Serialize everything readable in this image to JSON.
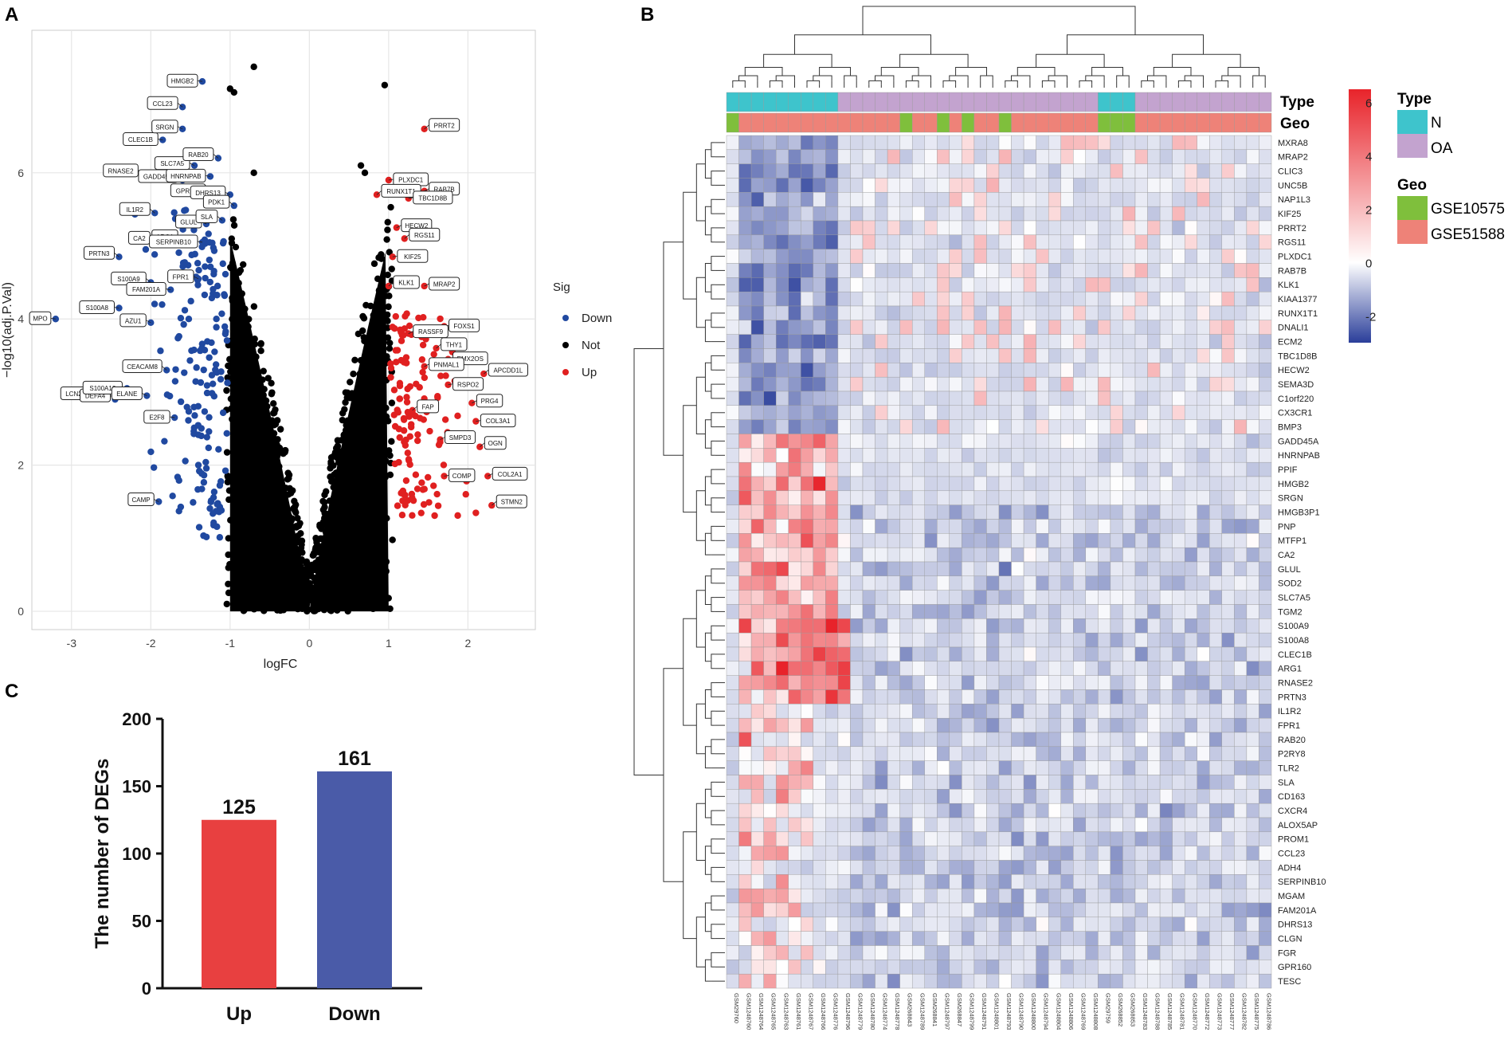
{
  "panels": {
    "a": "A",
    "b": "B",
    "c": "C"
  },
  "chart_data": [
    {
      "type": "scatter",
      "title": "",
      "xlabel": "logFC",
      "ylabel": "−log10(adj.P.Val)",
      "xlim": [
        -3.5,
        2.85
      ],
      "ylim": [
        -0.25,
        7.95
      ],
      "xticks": [
        -3,
        -2,
        -1,
        0,
        1,
        2
      ],
      "yticks": [
        0,
        2,
        4,
        6
      ],
      "grid": true,
      "legend": {
        "title": "Sig",
        "position": "right",
        "entries": [
          {
            "name": "Down",
            "color": "#2049a0"
          },
          {
            "name": "Not",
            "color": "#000000"
          },
          {
            "name": "Up",
            "color": "#e02020"
          }
        ]
      },
      "series_counts": {
        "Up": 125,
        "Down": 161
      },
      "labeled_genes": [
        {
          "label": "MPO",
          "x": -3.2,
          "y": 4.0,
          "sig": "Down"
        },
        {
          "label": "LCN2",
          "x": -2.75,
          "y": 2.95,
          "sig": "Down"
        },
        {
          "label": "DEFA4",
          "x": -2.45,
          "y": 2.9,
          "sig": "Down"
        },
        {
          "label": "S100A12",
          "x": -2.3,
          "y": 3.05,
          "sig": "Down"
        },
        {
          "label": "ELANE",
          "x": -2.05,
          "y": 2.95,
          "sig": "Down"
        },
        {
          "label": "CEACAM8",
          "x": -1.8,
          "y": 3.3,
          "sig": "Down"
        },
        {
          "label": "S100A8",
          "x": -2.4,
          "y": 4.15,
          "sig": "Down"
        },
        {
          "label": "AZU1",
          "x": -2.0,
          "y": 3.95,
          "sig": "Down"
        },
        {
          "label": "S100A9",
          "x": -2.0,
          "y": 4.5,
          "sig": "Down"
        },
        {
          "label": "FAM201A",
          "x": -1.75,
          "y": 4.4,
          "sig": "Down"
        },
        {
          "label": "FPR1",
          "x": -1.4,
          "y": 4.55,
          "sig": "Down"
        },
        {
          "label": "PRTN3",
          "x": -2.4,
          "y": 4.85,
          "sig": "Down"
        },
        {
          "label": "CA2",
          "x": -1.95,
          "y": 5.1,
          "sig": "Down"
        },
        {
          "label": "ARG1",
          "x": -1.6,
          "y": 5.1,
          "sig": "Down"
        },
        {
          "label": "IL1R2",
          "x": -1.95,
          "y": 5.45,
          "sig": "Down"
        },
        {
          "label": "SERPINB10",
          "x": -1.35,
          "y": 5.05,
          "sig": "Down"
        },
        {
          "label": "GLUL",
          "x": -1.3,
          "y": 5.3,
          "sig": "Down"
        },
        {
          "label": "SLA",
          "x": -1.1,
          "y": 5.35,
          "sig": "Down"
        },
        {
          "label": "GPR160",
          "x": -1.25,
          "y": 5.75,
          "sig": "Down"
        },
        {
          "label": "RNASE2",
          "x": -2.1,
          "y": 6.0,
          "sig": "Down"
        },
        {
          "label": "GADD45A",
          "x": -1.6,
          "y": 5.9,
          "sig": "Down"
        },
        {
          "label": "HNRNPAB",
          "x": -1.25,
          "y": 5.95,
          "sig": "Down"
        },
        {
          "label": "SLC7A5",
          "x": -1.45,
          "y": 6.1,
          "sig": "Down"
        },
        {
          "label": "RAB20",
          "x": -1.15,
          "y": 6.2,
          "sig": "Down"
        },
        {
          "label": "CLEC1B",
          "x": -1.85,
          "y": 6.45,
          "sig": "Down"
        },
        {
          "label": "SRGN",
          "x": -1.6,
          "y": 6.6,
          "sig": "Down"
        },
        {
          "label": "CCL23",
          "x": -1.6,
          "y": 6.9,
          "sig": "Down"
        },
        {
          "label": "HMGB2",
          "x": -1.35,
          "y": 7.25,
          "sig": "Down"
        },
        {
          "label": "DHRS13",
          "x": -1.0,
          "y": 5.7,
          "sig": "Down"
        },
        {
          "label": "PDK1",
          "x": -0.95,
          "y": 5.55,
          "sig": "Down"
        },
        {
          "label": "E2F8",
          "x": -1.7,
          "y": 2.65,
          "sig": "Down"
        },
        {
          "label": "CAMP",
          "x": -1.9,
          "y": 1.5,
          "sig": "Down"
        },
        {
          "label": "PRRT2",
          "x": 1.45,
          "y": 6.6,
          "sig": "Up"
        },
        {
          "label": "PLXDC1",
          "x": 1.0,
          "y": 5.9,
          "sig": "Up"
        },
        {
          "label": "RAB7B",
          "x": 1.45,
          "y": 5.75,
          "sig": "Up"
        },
        {
          "label": "RUNX1T1",
          "x": 0.85,
          "y": 5.7,
          "sig": "Up"
        },
        {
          "label": "TBC1D8B",
          "x": 1.25,
          "y": 5.65,
          "sig": "Up"
        },
        {
          "label": "HECW2",
          "x": 1.1,
          "y": 5.25,
          "sig": "Up"
        },
        {
          "label": "RGS11",
          "x": 1.2,
          "y": 5.1,
          "sig": "Up"
        },
        {
          "label": "KIF25",
          "x": 1.05,
          "y": 4.85,
          "sig": "Up"
        },
        {
          "label": "MRAP2",
          "x": 1.45,
          "y": 4.45,
          "sig": "Up"
        },
        {
          "label": "KLK1",
          "x": 1.0,
          "y": 4.45,
          "sig": "Up"
        },
        {
          "label": "FOXS1",
          "x": 1.7,
          "y": 3.9,
          "sig": "Up"
        },
        {
          "label": "RASSF9",
          "x": 1.25,
          "y": 3.8,
          "sig": "Up"
        },
        {
          "label": "THY1",
          "x": 1.6,
          "y": 3.6,
          "sig": "Up"
        },
        {
          "label": "EMX2OS",
          "x": 1.75,
          "y": 3.45,
          "sig": "Up"
        },
        {
          "label": "PNMAL1",
          "x": 1.45,
          "y": 3.35,
          "sig": "Up"
        },
        {
          "label": "APCDD1L",
          "x": 2.2,
          "y": 3.25,
          "sig": "Up"
        },
        {
          "label": "RSPO2",
          "x": 1.75,
          "y": 3.1,
          "sig": "Up"
        },
        {
          "label": "PRG4",
          "x": 2.05,
          "y": 2.85,
          "sig": "Up"
        },
        {
          "label": "FAP",
          "x": 1.3,
          "y": 2.75,
          "sig": "Up"
        },
        {
          "label": "COL3A1",
          "x": 2.1,
          "y": 2.6,
          "sig": "Up"
        },
        {
          "label": "SMPD3",
          "x": 1.65,
          "y": 2.35,
          "sig": "Up"
        },
        {
          "label": "OGN",
          "x": 2.15,
          "y": 2.25,
          "sig": "Up"
        },
        {
          "label": "COMP",
          "x": 1.7,
          "y": 1.85,
          "sig": "Up"
        },
        {
          "label": "COL2A1",
          "x": 2.25,
          "y": 1.85,
          "sig": "Up"
        },
        {
          "label": "STMN2",
          "x": 2.3,
          "y": 1.45,
          "sig": "Up"
        }
      ]
    },
    {
      "type": "heatmap",
      "title": "",
      "colorbar": {
        "min": -3,
        "max": 6.5,
        "ticks": [
          -2,
          0,
          2,
          4,
          6
        ],
        "colors": [
          "#2a3e9a",
          "#ffffff",
          "#e8232a"
        ]
      },
      "annotation_tracks": [
        "Type",
        "Geo"
      ],
      "legend": [
        {
          "title": "Type",
          "entries": [
            {
              "name": "N",
              "color": "#3ec4cc"
            },
            {
              "name": "OA",
              "color": "#c3a3cf"
            }
          ]
        },
        {
          "title": "Geo",
          "entries": [
            {
              "name": "GSE10575",
              "color": "#7fbf3c"
            },
            {
              "name": "GSE51588",
              "color": "#ee8278"
            }
          ]
        }
      ],
      "rows": [
        "MXRA8",
        "MRAP2",
        "CLIC3",
        "UNC5B",
        "NAP1L3",
        "KIF25",
        "PRRT2",
        "RGS11",
        "PLXDC1",
        "RAB7B",
        "KLK1",
        "KIAA1377",
        "RUNX1T1",
        "DNALI1",
        "ECM2",
        "TBC1D8B",
        "HECW2",
        "SEMA3D",
        "C1orf220",
        "CX3CR1",
        "BMP3",
        "GADD45A",
        "HNRNPAB",
        "PPIF",
        "HMGB2",
        "SRGN",
        "HMGB3P1",
        "PNP",
        "MTFP1",
        "CA2",
        "GLUL",
        "SOD2",
        "SLC7A5",
        "TGM2",
        "S100A9",
        "S100A8",
        "CLEC1B",
        "ARG1",
        "RNASE2",
        "PRTN3",
        "IL1R2",
        "FPR1",
        "RAB20",
        "P2RY8",
        "TLR2",
        "SLA",
        "CD163",
        "CXCR4",
        "ALOX5AP",
        "PROM1",
        "CCL23",
        "ADH4",
        "SERPINB10",
        "MGAM",
        "FAM201A",
        "DHRS13",
        "CLGN",
        "FGR",
        "GPR160",
        "TESC"
      ],
      "columns": [
        "GSM29760",
        "GSM1248760",
        "GSM1248764",
        "GSM1248765",
        "GSM1248763",
        "GSM1248761",
        "GSM1248767",
        "GSM1248766",
        "GSM1248776",
        "GSM1248796",
        "GSM1248779",
        "GSM1248780",
        "GSM1248774",
        "GSM1248778",
        "GSM268843",
        "GSM1248789",
        "GSM268841",
        "GSM1248797",
        "GSM268847",
        "GSM1248799",
        "GSM1248791",
        "GSM1248801",
        "GSM1248793",
        "GSM1248790",
        "GSM1248800",
        "GSM1248794",
        "GSM1248804",
        "GSM1248806",
        "GSM1248769",
        "GSM1248808",
        "GSM29759",
        "GSM268852",
        "GSM268853",
        "GSM1248783",
        "GSM1248788",
        "GSM1248785",
        "GSM1248781",
        "GSM1248770",
        "GSM1248772",
        "GSM1248773",
        "GSM1248777",
        "GSM1248782",
        "GSM1248775",
        "GSM1248786"
      ],
      "column_type": [
        "N",
        "N",
        "N",
        "N",
        "N",
        "N",
        "N",
        "N",
        "N",
        "OA",
        "OA",
        "OA",
        "OA",
        "OA",
        "OA",
        "OA",
        "OA",
        "OA",
        "OA",
        "OA",
        "OA",
        "OA",
        "OA",
        "OA",
        "OA",
        "OA",
        "OA",
        "OA",
        "OA",
        "OA",
        "N",
        "N",
        "N",
        "OA",
        "OA",
        "OA",
        "OA",
        "OA",
        "OA",
        "OA",
        "OA",
        "OA",
        "OA",
        "OA"
      ],
      "column_geo": [
        "GSE10575",
        "GSE51588",
        "GSE51588",
        "GSE51588",
        "GSE51588",
        "GSE51588",
        "GSE51588",
        "GSE51588",
        "GSE51588",
        "GSE51588",
        "GSE51588",
        "GSE51588",
        "GSE51588",
        "GSE51588",
        "GSE10575",
        "GSE51588",
        "GSE51588",
        "GSE10575",
        "GSE51588",
        "GSE10575",
        "GSE51588",
        "GSE51588",
        "GSE10575",
        "GSE51588",
        "GSE51588",
        "GSE51588",
        "GSE51588",
        "GSE51588",
        "GSE51588",
        "GSE51588",
        "GSE10575",
        "GSE10575",
        "GSE10575",
        "GSE51588",
        "GSE51588",
        "GSE51588",
        "GSE51588",
        "GSE51588",
        "GSE51588",
        "GSE51588",
        "GSE51588",
        "GSE51588",
        "GSE51588",
        "GSE51588"
      ]
    },
    {
      "type": "bar",
      "title": "",
      "xlabel": "",
      "ylabel": "The number of DEGs",
      "categories": [
        "Up",
        "Down"
      ],
      "values": [
        125,
        161
      ],
      "colors": [
        "#e84040",
        "#4a5ba8"
      ],
      "ylim": [
        0,
        200
      ],
      "yticks": [
        0,
        50,
        100,
        150,
        200
      ]
    }
  ]
}
